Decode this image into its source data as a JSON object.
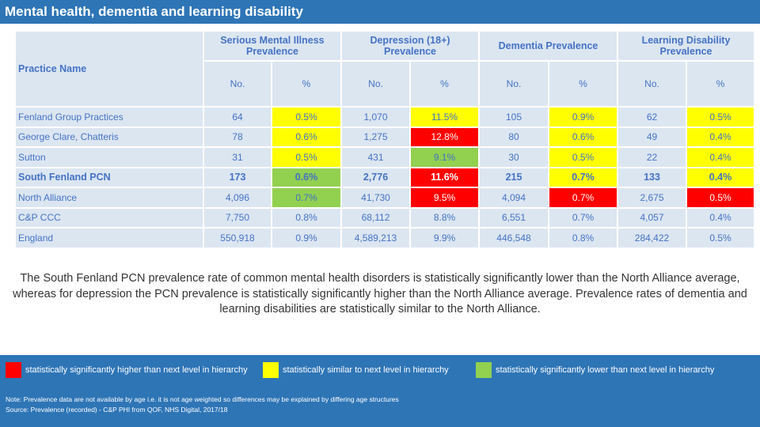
{
  "header": {
    "title": "Mental health, dementia and learning disability"
  },
  "table": {
    "row_header": "Practice Name",
    "groups": [
      "Serious Mental Illness Prevalence",
      "Depression (18+) Prevalence",
      "Dementia Prevalence",
      "Learning Disability Prevalence"
    ],
    "subheaders": [
      "No.",
      "%",
      "No.",
      "%",
      "No.",
      "%",
      "No.",
      "%"
    ],
    "rows": [
      {
        "name": "Fenland Group Practices",
        "cells": [
          {
            "text": "64"
          },
          {
            "text": "0.5%",
            "color": "#ffff00"
          },
          {
            "text": "1,070"
          },
          {
            "text": "11.5%",
            "color": "#ffff00"
          },
          {
            "text": "105"
          },
          {
            "text": "0.9%",
            "color": "#ffff00"
          },
          {
            "text": "62"
          },
          {
            "text": "0.5%",
            "color": "#ffff00"
          }
        ]
      },
      {
        "name": "George Clare, Chatteris",
        "cells": [
          {
            "text": "78"
          },
          {
            "text": "0.6%",
            "color": "#ffff00"
          },
          {
            "text": "1,275"
          },
          {
            "text": "12.8%",
            "color": "#ff0000"
          },
          {
            "text": "80"
          },
          {
            "text": "0.6%",
            "color": "#ffff00"
          },
          {
            "text": "49"
          },
          {
            "text": "0.4%",
            "color": "#ffff00"
          }
        ]
      },
      {
        "name": "Sutton",
        "cells": [
          {
            "text": "31"
          },
          {
            "text": "0.5%",
            "color": "#ffff00"
          },
          {
            "text": "431"
          },
          {
            "text": "9.1%",
            "color": "#92d050"
          },
          {
            "text": "30"
          },
          {
            "text": "0.5%",
            "color": "#ffff00"
          },
          {
            "text": "22"
          },
          {
            "text": "0.4%",
            "color": "#ffff00"
          }
        ]
      },
      {
        "name": "South Fenland PCN",
        "bold": true,
        "cells": [
          {
            "text": "173"
          },
          {
            "text": "0.6%",
            "color": "#92d050"
          },
          {
            "text": "2,776"
          },
          {
            "text": "11.6%",
            "color": "#ff0000"
          },
          {
            "text": "215"
          },
          {
            "text": "0.7%",
            "color": "#ffff00"
          },
          {
            "text": "133"
          },
          {
            "text": "0.4%",
            "color": "#ffff00"
          }
        ]
      },
      {
        "name": "North Alliance",
        "cells": [
          {
            "text": "4,096"
          },
          {
            "text": "0.7%",
            "color": "#92d050"
          },
          {
            "text": "41,730"
          },
          {
            "text": "9.5%",
            "color": "#ff0000"
          },
          {
            "text": "4,094"
          },
          {
            "text": "0.7%",
            "color": "#ff0000"
          },
          {
            "text": "2,675"
          },
          {
            "text": "0.5%",
            "color": "#ff0000"
          }
        ]
      },
      {
        "name": "C&P CCC",
        "cells": [
          {
            "text": "7,750"
          },
          {
            "text": "0.8%"
          },
          {
            "text": "68,112"
          },
          {
            "text": "8.8%"
          },
          {
            "text": "6,551"
          },
          {
            "text": "0.7%"
          },
          {
            "text": "4,057"
          },
          {
            "text": "0.4%"
          }
        ]
      },
      {
        "name": "England",
        "cells": [
          {
            "text": "550,918"
          },
          {
            "text": "0.9%"
          },
          {
            "text": "4,589,213"
          },
          {
            "text": "9.9%"
          },
          {
            "text": "446,548"
          },
          {
            "text": "0.8%"
          },
          {
            "text": "284,422"
          },
          {
            "text": "0.5%"
          }
        ]
      }
    ]
  },
  "summary": "The South Fenland PCN prevalence rate of common mental health disorders is statistically significantly lower than the North Alliance average, whereas for depression the PCN prevalence is statistically significantly higher than the North Alliance average. Prevalence rates of dementia and learning disabilities are statistically similar to the North Alliance.",
  "legend": [
    {
      "label": "statistically significantly higher than next level in hierarchy",
      "color": "#ff0000"
    },
    {
      "label": "statistically similar to next level in hierarchy",
      "color": "#ffff00"
    },
    {
      "label": "statistically significantly lower than next level in hierarchy",
      "color": "#92d050"
    }
  ],
  "notes": [
    "Note: Prevalence data are not available by age i.e. it is not age weighted so differences may be explained by differing age structures",
    "Source: Prevalence (recorded) - C&P PHI from QOF, NHS Digital, 2017/18"
  ]
}
